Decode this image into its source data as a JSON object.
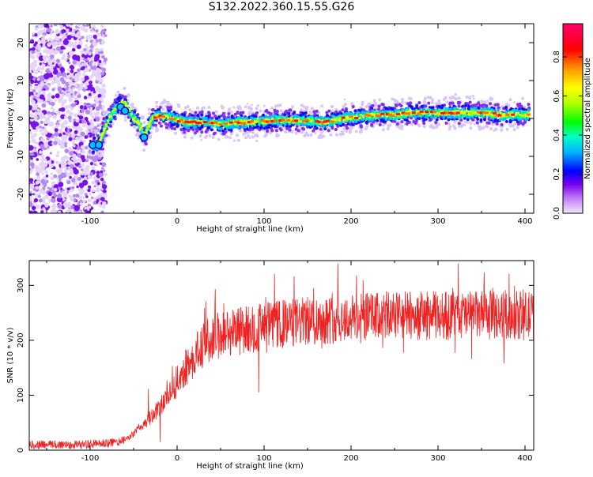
{
  "figure_title": "S132.2022.360.15.55.G26",
  "chart_data": [
    {
      "type": "heatmap",
      "title": "S132.2022.360.15.55.G26",
      "xlabel": "Height of straight line (km)",
      "ylabel": "Frequency (Hz)",
      "xlim": [
        -170,
        410
      ],
      "ylim": [
        -25,
        25
      ],
      "x_ticks": [
        -100,
        0,
        100,
        200,
        300,
        400
      ],
      "y_ticks": [
        -20,
        -10,
        0,
        10,
        20
      ],
      "colorbar": {
        "label": "Normalized spectral amplitude",
        "range": [
          0,
          0.97
        ],
        "ticks": [
          0.0,
          0.2,
          0.4,
          0.6,
          0.8
        ],
        "colormap": [
          "#e8d8f8",
          "#a060f0",
          "#7000f0",
          "#0000ff",
          "#00b0ff",
          "#00ffc0",
          "#00ff00",
          "#c0ff00",
          "#ffff00",
          "#ffa000",
          "#ff0000",
          "#ff0060"
        ]
      },
      "ridge": {
        "description_x": [
          -97,
          -90,
          -84,
          -78,
          -72,
          -66,
          -60,
          -55,
          -50,
          -45,
          -40,
          -37,
          -33,
          -28,
          -22,
          -15,
          -5,
          10,
          30,
          50,
          70,
          90,
          110,
          130,
          150,
          170,
          190,
          210,
          230,
          250,
          270,
          290,
          310,
          330,
          350,
          370,
          390,
          405
        ],
        "frequency": [
          -7,
          -7,
          -3,
          0,
          2,
          4,
          4,
          2,
          0,
          -1,
          -3,
          -5,
          -2,
          0,
          0.5,
          0.5,
          0,
          -1,
          -1,
          -1.5,
          -1,
          -1,
          -0.5,
          -0.5,
          -0.5,
          -1,
          0,
          0.5,
          1,
          1,
          1.5,
          1.5,
          1.5,
          1.5,
          1.5,
          1,
          1,
          1
        ]
      },
      "noise_region_x": [
        -170,
        -88
      ]
    },
    {
      "type": "line",
      "xlabel": "Height of straight line (km)",
      "ylabel": "SNR (10 * v/v)",
      "xlim": [
        -170,
        410
      ],
      "ylim": [
        0,
        345
      ],
      "x_ticks": [
        -100,
        0,
        100,
        200,
        300,
        400
      ],
      "y_ticks": [
        0,
        100,
        200,
        300
      ],
      "color": "#ee2222",
      "series": [
        {
          "trend_x": [
            -170,
            -120,
            -80,
            -60,
            -50,
            -40,
            -30,
            -20,
            -10,
            0,
            10,
            20,
            30,
            40,
            60,
            80,
            100,
            150,
            200,
            250,
            300,
            350,
            410
          ],
          "trend_y": [
            10,
            10,
            12,
            18,
            30,
            45,
            60,
            80,
            100,
            125,
            150,
            170,
            190,
            205,
            215,
            220,
            225,
            235,
            240,
            245,
            245,
            245,
            245
          ],
          "peak_max": 340,
          "noise_amplitude_low": 8,
          "noise_amplitude_high": 45
        }
      ]
    }
  ]
}
